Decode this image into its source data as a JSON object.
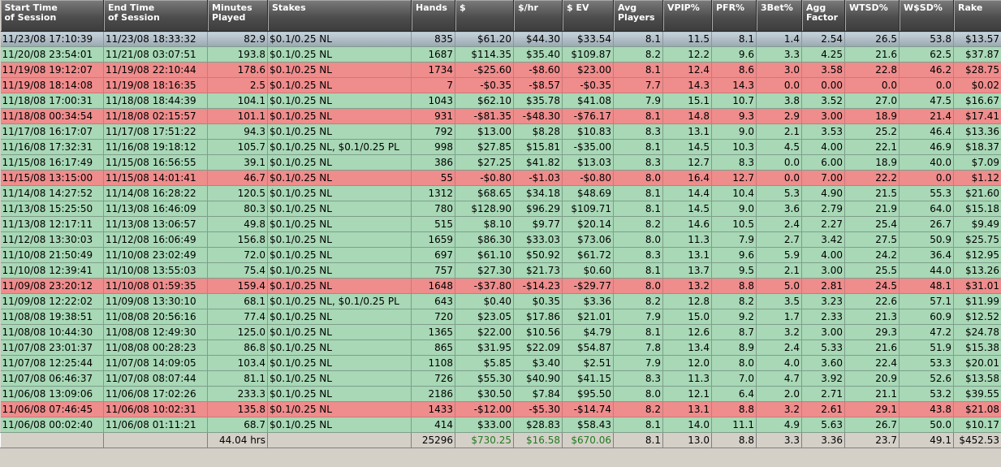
{
  "columns": [
    {
      "line1": "Start Time",
      "line2": "of Session"
    },
    {
      "line1": "End Time",
      "line2": "of Session"
    },
    {
      "line1": "Minutes",
      "line2": "Played"
    },
    {
      "line1": "Stakes",
      "line2": ""
    },
    {
      "line1": "Hands",
      "line2": ""
    },
    {
      "line1": "$",
      "line2": ""
    },
    {
      "line1": "$/hr",
      "line2": ""
    },
    {
      "line1": "$ EV",
      "line2": ""
    },
    {
      "line1": "Avg",
      "line2": "Players"
    },
    {
      "line1": "VPIP%",
      "line2": ""
    },
    {
      "line1": "PFR%",
      "line2": ""
    },
    {
      "line1": "3Bet%",
      "line2": ""
    },
    {
      "line1": "Agg",
      "line2": "Factor"
    },
    {
      "line1": "WTSD%",
      "line2": ""
    },
    {
      "line1": "W$SD%",
      "line2": ""
    },
    {
      "line1": "Rake",
      "line2": ""
    }
  ],
  "rows": [
    {
      "status": "selected",
      "cells": [
        "11/23/08 17:10:39",
        "11/23/08 18:33:32",
        "82.9",
        "$0.1/0.25 NL",
        "835",
        "$61.20",
        "$44.30",
        "$33.54",
        "8.1",
        "11.5",
        "8.1",
        "1.4",
        "2.54",
        "26.5",
        "53.8",
        "$13.57"
      ]
    },
    {
      "status": "win",
      "cells": [
        "11/20/08 23:54:01",
        "11/21/08 03:07:51",
        "193.8",
        "$0.1/0.25 NL",
        "1687",
        "$114.35",
        "$35.40",
        "$109.87",
        "8.2",
        "12.2",
        "9.6",
        "3.3",
        "4.25",
        "21.6",
        "62.5",
        "$37.87"
      ]
    },
    {
      "status": "loss",
      "cells": [
        "11/19/08 19:12:07",
        "11/19/08 22:10:44",
        "178.6",
        "$0.1/0.25 NL",
        "1734",
        "-$25.60",
        "-$8.60",
        "$23.00",
        "8.1",
        "12.4",
        "8.6",
        "3.0",
        "3.58",
        "22.8",
        "46.2",
        "$28.75"
      ]
    },
    {
      "status": "loss",
      "cells": [
        "11/19/08 18:14:08",
        "11/19/08 18:16:35",
        "2.5",
        "$0.1/0.25 NL",
        "7",
        "-$0.35",
        "-$8.57",
        "-$0.35",
        "7.7",
        "14.3",
        "14.3",
        "0.0",
        "0.00",
        "0.0",
        "0.0",
        "$0.02"
      ]
    },
    {
      "status": "win",
      "cells": [
        "11/18/08 17:00:31",
        "11/18/08 18:44:39",
        "104.1",
        "$0.1/0.25 NL",
        "1043",
        "$62.10",
        "$35.78",
        "$41.08",
        "7.9",
        "15.1",
        "10.7",
        "3.8",
        "3.52",
        "27.0",
        "47.5",
        "$16.67"
      ]
    },
    {
      "status": "loss",
      "cells": [
        "11/18/08 00:34:54",
        "11/18/08 02:15:57",
        "101.1",
        "$0.1/0.25 NL",
        "931",
        "-$81.35",
        "-$48.30",
        "-$76.17",
        "8.1",
        "14.8",
        "9.3",
        "2.9",
        "3.00",
        "18.9",
        "21.4",
        "$17.41"
      ]
    },
    {
      "status": "win",
      "cells": [
        "11/17/08 16:17:07",
        "11/17/08 17:51:22",
        "94.3",
        "$0.1/0.25 NL",
        "792",
        "$13.00",
        "$8.28",
        "$10.83",
        "8.3",
        "13.1",
        "9.0",
        "2.1",
        "3.53",
        "25.2",
        "46.4",
        "$13.36"
      ]
    },
    {
      "status": "win",
      "cells": [
        "11/16/08 17:32:31",
        "11/16/08 19:18:12",
        "105.7",
        "$0.1/0.25 NL, $0.1/0.25 PL",
        "998",
        "$27.85",
        "$15.81",
        "-$35.00",
        "8.1",
        "14.5",
        "10.3",
        "4.5",
        "4.00",
        "22.1",
        "46.9",
        "$18.37"
      ]
    },
    {
      "status": "win",
      "cells": [
        "11/15/08 16:17:49",
        "11/15/08 16:56:55",
        "39.1",
        "$0.1/0.25 NL",
        "386",
        "$27.25",
        "$41.82",
        "$13.03",
        "8.3",
        "12.7",
        "8.3",
        "0.0",
        "6.00",
        "18.9",
        "40.0",
        "$7.09"
      ]
    },
    {
      "status": "loss",
      "cells": [
        "11/15/08 13:15:00",
        "11/15/08 14:01:41",
        "46.7",
        "$0.1/0.25 NL",
        "55",
        "-$0.80",
        "-$1.03",
        "-$0.80",
        "8.0",
        "16.4",
        "12.7",
        "0.0",
        "7.00",
        "22.2",
        "0.0",
        "$1.12"
      ]
    },
    {
      "status": "win",
      "cells": [
        "11/14/08 14:27:52",
        "11/14/08 16:28:22",
        "120.5",
        "$0.1/0.25 NL",
        "1312",
        "$68.65",
        "$34.18",
        "$48.69",
        "8.1",
        "14.4",
        "10.4",
        "5.3",
        "4.90",
        "21.5",
        "55.3",
        "$21.60"
      ]
    },
    {
      "status": "win",
      "cells": [
        "11/13/08 15:25:50",
        "11/13/08 16:46:09",
        "80.3",
        "$0.1/0.25 NL",
        "780",
        "$128.90",
        "$96.29",
        "$109.71",
        "8.1",
        "14.5",
        "9.0",
        "3.6",
        "2.79",
        "21.9",
        "64.0",
        "$15.18"
      ]
    },
    {
      "status": "win",
      "cells": [
        "11/13/08 12:17:11",
        "11/13/08 13:06:57",
        "49.8",
        "$0.1/0.25 NL",
        "515",
        "$8.10",
        "$9.77",
        "$20.14",
        "8.2",
        "14.6",
        "10.5",
        "2.4",
        "2.27",
        "25.4",
        "26.7",
        "$9.49"
      ]
    },
    {
      "status": "win",
      "cells": [
        "11/12/08 13:30:03",
        "11/12/08 16:06:49",
        "156.8",
        "$0.1/0.25 NL",
        "1659",
        "$86.30",
        "$33.03",
        "$73.06",
        "8.0",
        "11.3",
        "7.9",
        "2.7",
        "3.42",
        "27.5",
        "50.9",
        "$25.75"
      ]
    },
    {
      "status": "win",
      "cells": [
        "11/10/08 21:50:49",
        "11/10/08 23:02:49",
        "72.0",
        "$0.1/0.25 NL",
        "697",
        "$61.10",
        "$50.92",
        "$61.72",
        "8.3",
        "13.1",
        "9.6",
        "5.9",
        "4.00",
        "24.2",
        "36.4",
        "$12.95"
      ]
    },
    {
      "status": "win",
      "cells": [
        "11/10/08 12:39:41",
        "11/10/08 13:55:03",
        "75.4",
        "$0.1/0.25 NL",
        "757",
        "$27.30",
        "$21.73",
        "$0.60",
        "8.1",
        "13.7",
        "9.5",
        "2.1",
        "3.00",
        "25.5",
        "44.0",
        "$13.26"
      ]
    },
    {
      "status": "loss",
      "cells": [
        "11/09/08 23:20:12",
        "11/10/08 01:59:35",
        "159.4",
        "$0.1/0.25 NL",
        "1648",
        "-$37.80",
        "-$14.23",
        "-$29.77",
        "8.0",
        "13.2",
        "8.8",
        "5.0",
        "2.81",
        "24.5",
        "48.1",
        "$31.01"
      ]
    },
    {
      "status": "win",
      "cells": [
        "11/09/08 12:22:02",
        "11/09/08 13:30:10",
        "68.1",
        "$0.1/0.25 NL, $0.1/0.25 PL",
        "643",
        "$0.40",
        "$0.35",
        "$3.36",
        "8.2",
        "12.8",
        "8.2",
        "3.5",
        "3.23",
        "22.6",
        "57.1",
        "$11.99"
      ]
    },
    {
      "status": "win",
      "cells": [
        "11/08/08 19:38:51",
        "11/08/08 20:56:16",
        "77.4",
        "$0.1/0.25 NL",
        "720",
        "$23.05",
        "$17.86",
        "$21.01",
        "7.9",
        "15.0",
        "9.2",
        "1.7",
        "2.33",
        "21.3",
        "60.9",
        "$12.52"
      ]
    },
    {
      "status": "win",
      "cells": [
        "11/08/08 10:44:30",
        "11/08/08 12:49:30",
        "125.0",
        "$0.1/0.25 NL",
        "1365",
        "$22.00",
        "$10.56",
        "$4.79",
        "8.1",
        "12.6",
        "8.7",
        "3.2",
        "3.00",
        "29.3",
        "47.2",
        "$24.78"
      ]
    },
    {
      "status": "win",
      "cells": [
        "11/07/08 23:01:37",
        "11/08/08 00:28:23",
        "86.8",
        "$0.1/0.25 NL",
        "865",
        "$31.95",
        "$22.09",
        "$54.87",
        "7.8",
        "13.4",
        "8.9",
        "2.4",
        "5.33",
        "21.6",
        "51.9",
        "$15.38"
      ]
    },
    {
      "status": "win",
      "cells": [
        "11/07/08 12:25:44",
        "11/07/08 14:09:05",
        "103.4",
        "$0.1/0.25 NL",
        "1108",
        "$5.85",
        "$3.40",
        "$2.51",
        "7.9",
        "12.0",
        "8.0",
        "4.0",
        "3.60",
        "22.4",
        "53.3",
        "$20.01"
      ]
    },
    {
      "status": "win",
      "cells": [
        "11/07/08 06:46:37",
        "11/07/08 08:07:44",
        "81.1",
        "$0.1/0.25 NL",
        "726",
        "$55.30",
        "$40.90",
        "$41.15",
        "8.3",
        "11.3",
        "7.0",
        "4.7",
        "3.92",
        "20.9",
        "52.6",
        "$13.58"
      ]
    },
    {
      "status": "win",
      "cells": [
        "11/06/08 13:09:06",
        "11/06/08 17:02:26",
        "233.3",
        "$0.1/0.25 NL",
        "2186",
        "$30.50",
        "$7.84",
        "$95.50",
        "8.0",
        "12.1",
        "6.4",
        "2.0",
        "2.71",
        "21.1",
        "53.2",
        "$39.55"
      ]
    },
    {
      "status": "loss",
      "cells": [
        "11/06/08 07:46:45",
        "11/06/08 10:02:31",
        "135.8",
        "$0.1/0.25 NL",
        "1433",
        "-$12.00",
        "-$5.30",
        "-$14.74",
        "8.2",
        "13.1",
        "8.8",
        "3.2",
        "2.61",
        "29.1",
        "43.8",
        "$21.08"
      ]
    },
    {
      "status": "win",
      "cells": [
        "11/06/08 00:02:40",
        "11/06/08 01:11:21",
        "68.7",
        "$0.1/0.25 NL",
        "414",
        "$33.00",
        "$28.83",
        "$58.43",
        "8.1",
        "14.0",
        "11.1",
        "4.9",
        "5.63",
        "26.7",
        "50.0",
        "$10.17"
      ]
    }
  ],
  "totals": [
    "",
    "",
    "44.04 hrs",
    "",
    "25296",
    "$730.25",
    "$16.58",
    "$670.06",
    "8.1",
    "13.0",
    "8.8",
    "3.3",
    "3.36",
    "23.7",
    "49.1",
    "$452.53"
  ],
  "colors": {
    "win_row": "#a8d8b6",
    "loss_row": "#ef8c8c",
    "header_bg": "#4e4e4e",
    "total_positive": "#1e7b1e"
  }
}
